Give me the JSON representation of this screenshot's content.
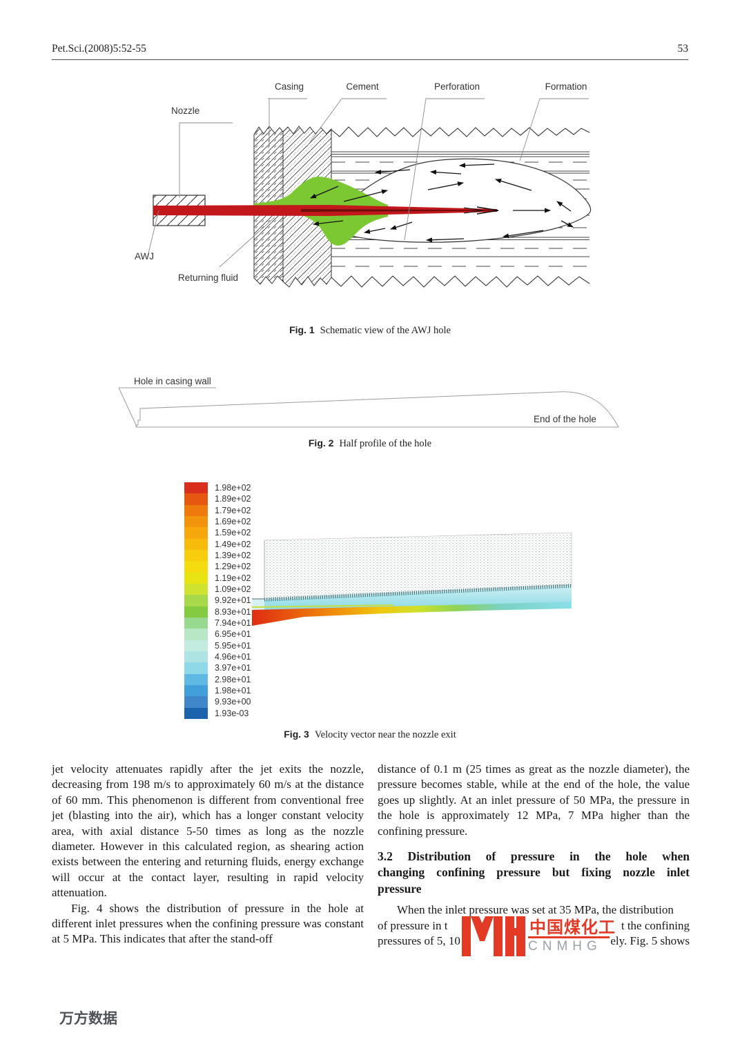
{
  "header": {
    "journal": "Pet.Sci.(2008)5:52-55",
    "page_number": "53"
  },
  "fig1": {
    "caption_label": "Fig. 1",
    "caption_text": "Schematic view of the AWJ hole",
    "labels": {
      "nozzle": "Nozzle",
      "casing": "Casing",
      "cement": "Cement",
      "perforation": "Perforation",
      "formation": "Formation",
      "awj": "AWJ",
      "returning_fluid": "Returning fluid"
    },
    "colors": {
      "jet": "#c2181b",
      "jet_core": "#6e0d10",
      "fluid": "#7cc832"
    }
  },
  "fig2": {
    "caption_label": "Fig. 2",
    "caption_text": "Half profile of the hole",
    "labels": {
      "hole": "Hole in casing wall",
      "end": "End of the hole"
    }
  },
  "fig3": {
    "caption_label": "Fig. 3",
    "caption_text": "Velocity vector near the nozzle exit",
    "legend": [
      {
        "value": "1.98e+02",
        "color": "#d92e1c"
      },
      {
        "value": "1.89e+02",
        "color": "#e65712"
      },
      {
        "value": "1.79e+02",
        "color": "#ee7a0e"
      },
      {
        "value": "1.69e+02",
        "color": "#f2930c"
      },
      {
        "value": "1.59e+02",
        "color": "#f5a70b"
      },
      {
        "value": "1.49e+02",
        "color": "#f7bb0c"
      },
      {
        "value": "1.39e+02",
        "color": "#f7cd0e"
      },
      {
        "value": "1.29e+02",
        "color": "#f4dc10"
      },
      {
        "value": "1.19e+02",
        "color": "#e8e312"
      },
      {
        "value": "1.09e+02",
        "color": "#cfe230"
      },
      {
        "value": "9.92e+01",
        "color": "#a8d94a"
      },
      {
        "value": "8.93e+01",
        "color": "#84cb42"
      },
      {
        "value": "7.94e+01",
        "color": "#97d98e"
      },
      {
        "value": "6.95e+01",
        "color": "#b7e7c4"
      },
      {
        "value": "5.95e+01",
        "color": "#c4ebdf"
      },
      {
        "value": "4.96e+01",
        "color": "#ade4e3"
      },
      {
        "value": "3.97e+01",
        "color": "#8fd8e8"
      },
      {
        "value": "2.98e+01",
        "color": "#5fb9e2"
      },
      {
        "value": "1.98e+01",
        "color": "#419fd9"
      },
      {
        "value": "9.93e+00",
        "color": "#3f87c8"
      },
      {
        "value": "1.93e-03",
        "color": "#1c63ae"
      }
    ]
  },
  "body": {
    "left_p1": "jet velocity attenuates rapidly after the jet exits the nozzle, decreasing from 198 m/s to approximately 60 m/s at the distance of 60 mm. This phenomenon is different from conventional free jet (blasting into the air), which has a longer constant velocity area, with axial distance 5-50 times as long as the nozzle diameter. However in this calculated region, as shearing action exists between the entering and returning fluids, energy exchange will occur at the contact layer, resulting in rapid velocity attenuation.",
    "left_p2": "Fig. 4 shows the distribution of pressure in the hole at different inlet pressures when the confining pressure was constant at 5 MPa. This indicates that after the stand-off",
    "right_p1": "distance of 0.1 m (25 times as great as the nozzle diameter), the pressure becomes stable, while at the end of the hole, the value goes up slightly. At an inlet pressure of 50 MPa, the pressure in the hole is approximately 12 MPa, 7 MPa higher than the confining pressure.",
    "heading_line1": "3.2 Distribution of pressure in the hole when",
    "heading_line2": "changing confining pressure but fixing nozzle inlet",
    "heading_line3": "pressure",
    "right_p2_line1": "When the inlet pressure was set at 35 MPa, the distribution",
    "right_p2_line2_left": "of pressure in t",
    "right_p2_line2_right": "t the confining",
    "right_p2_line3_left": "pressures of 5, 10",
    "right_p2_line3_right": "ely. Fig. 5 shows"
  },
  "watermark": {
    "cn": "中国煤化工",
    "en": "CNMHG",
    "color": "#e33a26"
  },
  "footer": {
    "brand": "万方数据"
  }
}
